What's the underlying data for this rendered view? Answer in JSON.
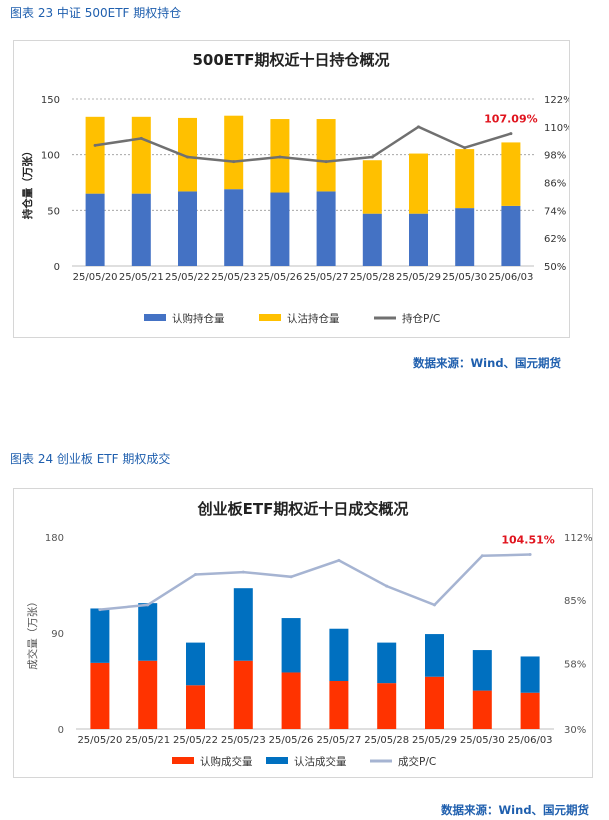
{
  "figures": [
    {
      "caption": "图表 23  中证 500ETF 期权持仓",
      "source": "数据来源：Wind、国元期货",
      "chart_data": {
        "type": "bar",
        "stacked": true,
        "title": "500ETF期权近十日持仓概况",
        "ylabel": "持仓量（万张）",
        "ylim": [
          0,
          150
        ],
        "yticks": [
          "0",
          "50",
          "100",
          "150"
        ],
        "y2lim": [
          50,
          122
        ],
        "y2ticks": [
          "50%",
          "62%",
          "74%",
          "86%",
          "98%",
          "110%",
          "122%"
        ],
        "categories": [
          "25/05/20",
          "25/05/21",
          "25/05/22",
          "25/05/23",
          "25/05/26",
          "25/05/27",
          "25/05/28",
          "25/05/29",
          "25/05/30",
          "25/06/03"
        ],
        "series": [
          {
            "name": "认购持仓量",
            "type": "bar",
            "axis": "left",
            "color": "#4472c4",
            "values": [
              65,
              65,
              67,
              69,
              66,
              67,
              47,
              47,
              52,
              54
            ]
          },
          {
            "name": "认沽持仓量",
            "type": "bar",
            "axis": "left",
            "color": "#ffc000",
            "values": [
              69,
              69,
              66,
              66,
              66,
              65,
              48,
              54,
              53,
              57
            ]
          },
          {
            "name": "持仓P/C",
            "type": "line",
            "axis": "right",
            "color": "#707070",
            "values": [
              102,
              105,
              97,
              95,
              97,
              95,
              97,
              110,
              101,
              107.09
            ]
          }
        ],
        "annotation": "107.09%",
        "grid": true,
        "legend": "bottom"
      }
    },
    {
      "caption": "图表 24  创业板 ETF 期权成交",
      "source": "数据来源：Wind、国元期货",
      "chart_data": {
        "type": "bar",
        "stacked": true,
        "title": "创业板ETF期权近十日成交概况",
        "ylabel": "成交量（万张）",
        "ylim": [
          0,
          180
        ],
        "yticks": [
          "0",
          "90",
          "180"
        ],
        "y2lim": [
          30,
          112
        ],
        "y2ticks": [
          "30%",
          "58%",
          "85%",
          "112%"
        ],
        "categories": [
          "25/05/20",
          "25/05/21",
          "25/05/22",
          "25/05/23",
          "25/05/26",
          "25/05/27",
          "25/05/28",
          "25/05/29",
          "25/05/30",
          "25/06/03"
        ],
        "series": [
          {
            "name": "认购成交量",
            "type": "bar",
            "axis": "left",
            "color": "#ff3300",
            "values": [
              62,
              64,
              41,
              64,
              53,
              45,
              43,
              49,
              36,
              34
            ]
          },
          {
            "name": "认沽成交量",
            "type": "bar",
            "axis": "left",
            "color": "#0070c0",
            "values": [
              51,
              54,
              40,
              68,
              51,
              49,
              38,
              40,
              38,
              34
            ]
          },
          {
            "name": "成交P/C",
            "type": "line",
            "axis": "right",
            "color": "#a6b4d2",
            "values": [
              81,
              83,
              96,
              97,
              95,
              102,
              91,
              83,
              104,
              104.51
            ]
          }
        ],
        "annotation": "104.51%",
        "grid": false,
        "legend": "bottom"
      }
    }
  ]
}
